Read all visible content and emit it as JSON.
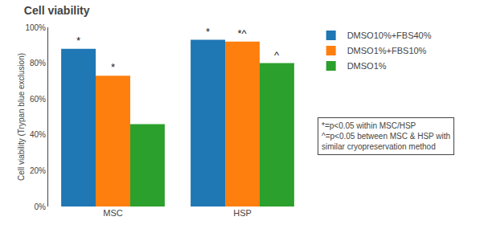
{
  "chart_data": {
    "type": "bar",
    "title": "Cell viability",
    "ylabel": "Cell viability (Trypan blue exclusion)",
    "categories": [
      "MSC",
      "HSP"
    ],
    "series": [
      {
        "name": "DMSO10%+FBS40%",
        "values": [
          88,
          93
        ]
      },
      {
        "name": "DMSO1%+FBS10%",
        "values": [
          73,
          92
        ]
      },
      {
        "name": "DMSO1%",
        "values": [
          46,
          80
        ]
      }
    ],
    "ylim": [
      0,
      100
    ],
    "yticks": [
      {
        "value": 0,
        "label": "0%"
      },
      {
        "value": 20,
        "label": "20%"
      },
      {
        "value": 40,
        "label": "40%"
      },
      {
        "value": 60,
        "label": "60%"
      },
      {
        "value": 80,
        "label": "80%"
      },
      {
        "value": 100,
        "label": "100%"
      }
    ],
    "annotations": [
      {
        "category": "MSC",
        "series": "DMSO10%+FBS40%",
        "text": "*"
      },
      {
        "category": "MSC",
        "series": "DMSO1%+FBS10%",
        "text": "*"
      },
      {
        "category": "HSP",
        "series": "DMSO10%+FBS40%",
        "text": "*"
      },
      {
        "category": "HSP",
        "series": "DMSO1%+FBS10%",
        "text": "*^"
      },
      {
        "category": "HSP",
        "series": "DMSO1%",
        "text": "^"
      }
    ],
    "note": [
      "*=p<0.05 within MSC/HSP",
      "^=p<0.05 between MSC & HSP with",
      "similar cryopreservation method"
    ],
    "grid": false,
    "legend": "right"
  }
}
